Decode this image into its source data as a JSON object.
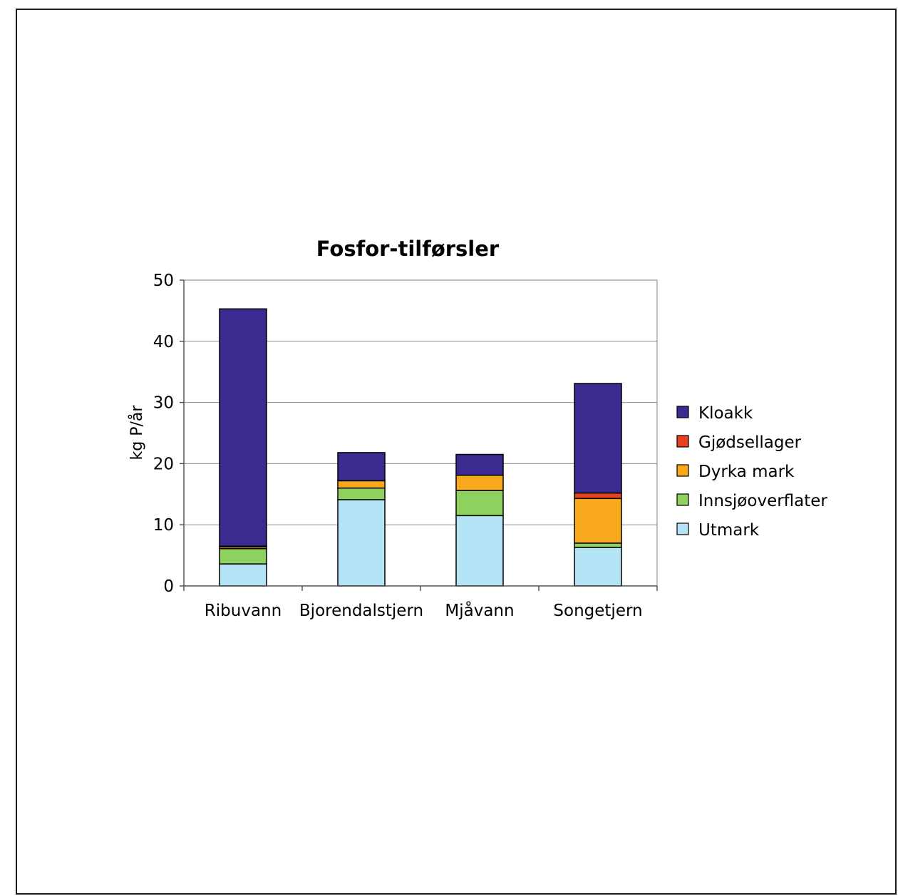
{
  "chart_data": {
    "type": "bar",
    "stacked": true,
    "title": "Fosfor-tilførsler",
    "xlabel": "",
    "ylabel": "kg P/år",
    "ylim": [
      0,
      50
    ],
    "yticks": [
      0,
      10,
      20,
      30,
      40,
      50
    ],
    "grid": true,
    "legend_position": "right",
    "categories": [
      "Ribuvann",
      "Bjorendalstjern",
      "Mjåvann",
      "Songetjern"
    ],
    "series": [
      {
        "name": "Utmark",
        "color": "#b4e4f5",
        "values": [
          3.6,
          14.1,
          11.5,
          6.3
        ]
      },
      {
        "name": "Innsjøoverflater",
        "color": "#8fd15f",
        "values": [
          2.5,
          1.9,
          4.1,
          0.7
        ]
      },
      {
        "name": "Dyrka mark",
        "color": "#f9a91c",
        "values": [
          0.3,
          1.2,
          2.5,
          7.3
        ]
      },
      {
        "name": "Gjødsellager",
        "color": "#e8401c",
        "values": [
          0.1,
          0.0,
          0.0,
          0.9
        ]
      },
      {
        "name": "Kloakk",
        "color": "#3b2a90",
        "values": [
          38.8,
          4.6,
          3.4,
          17.9
        ]
      }
    ]
  }
}
